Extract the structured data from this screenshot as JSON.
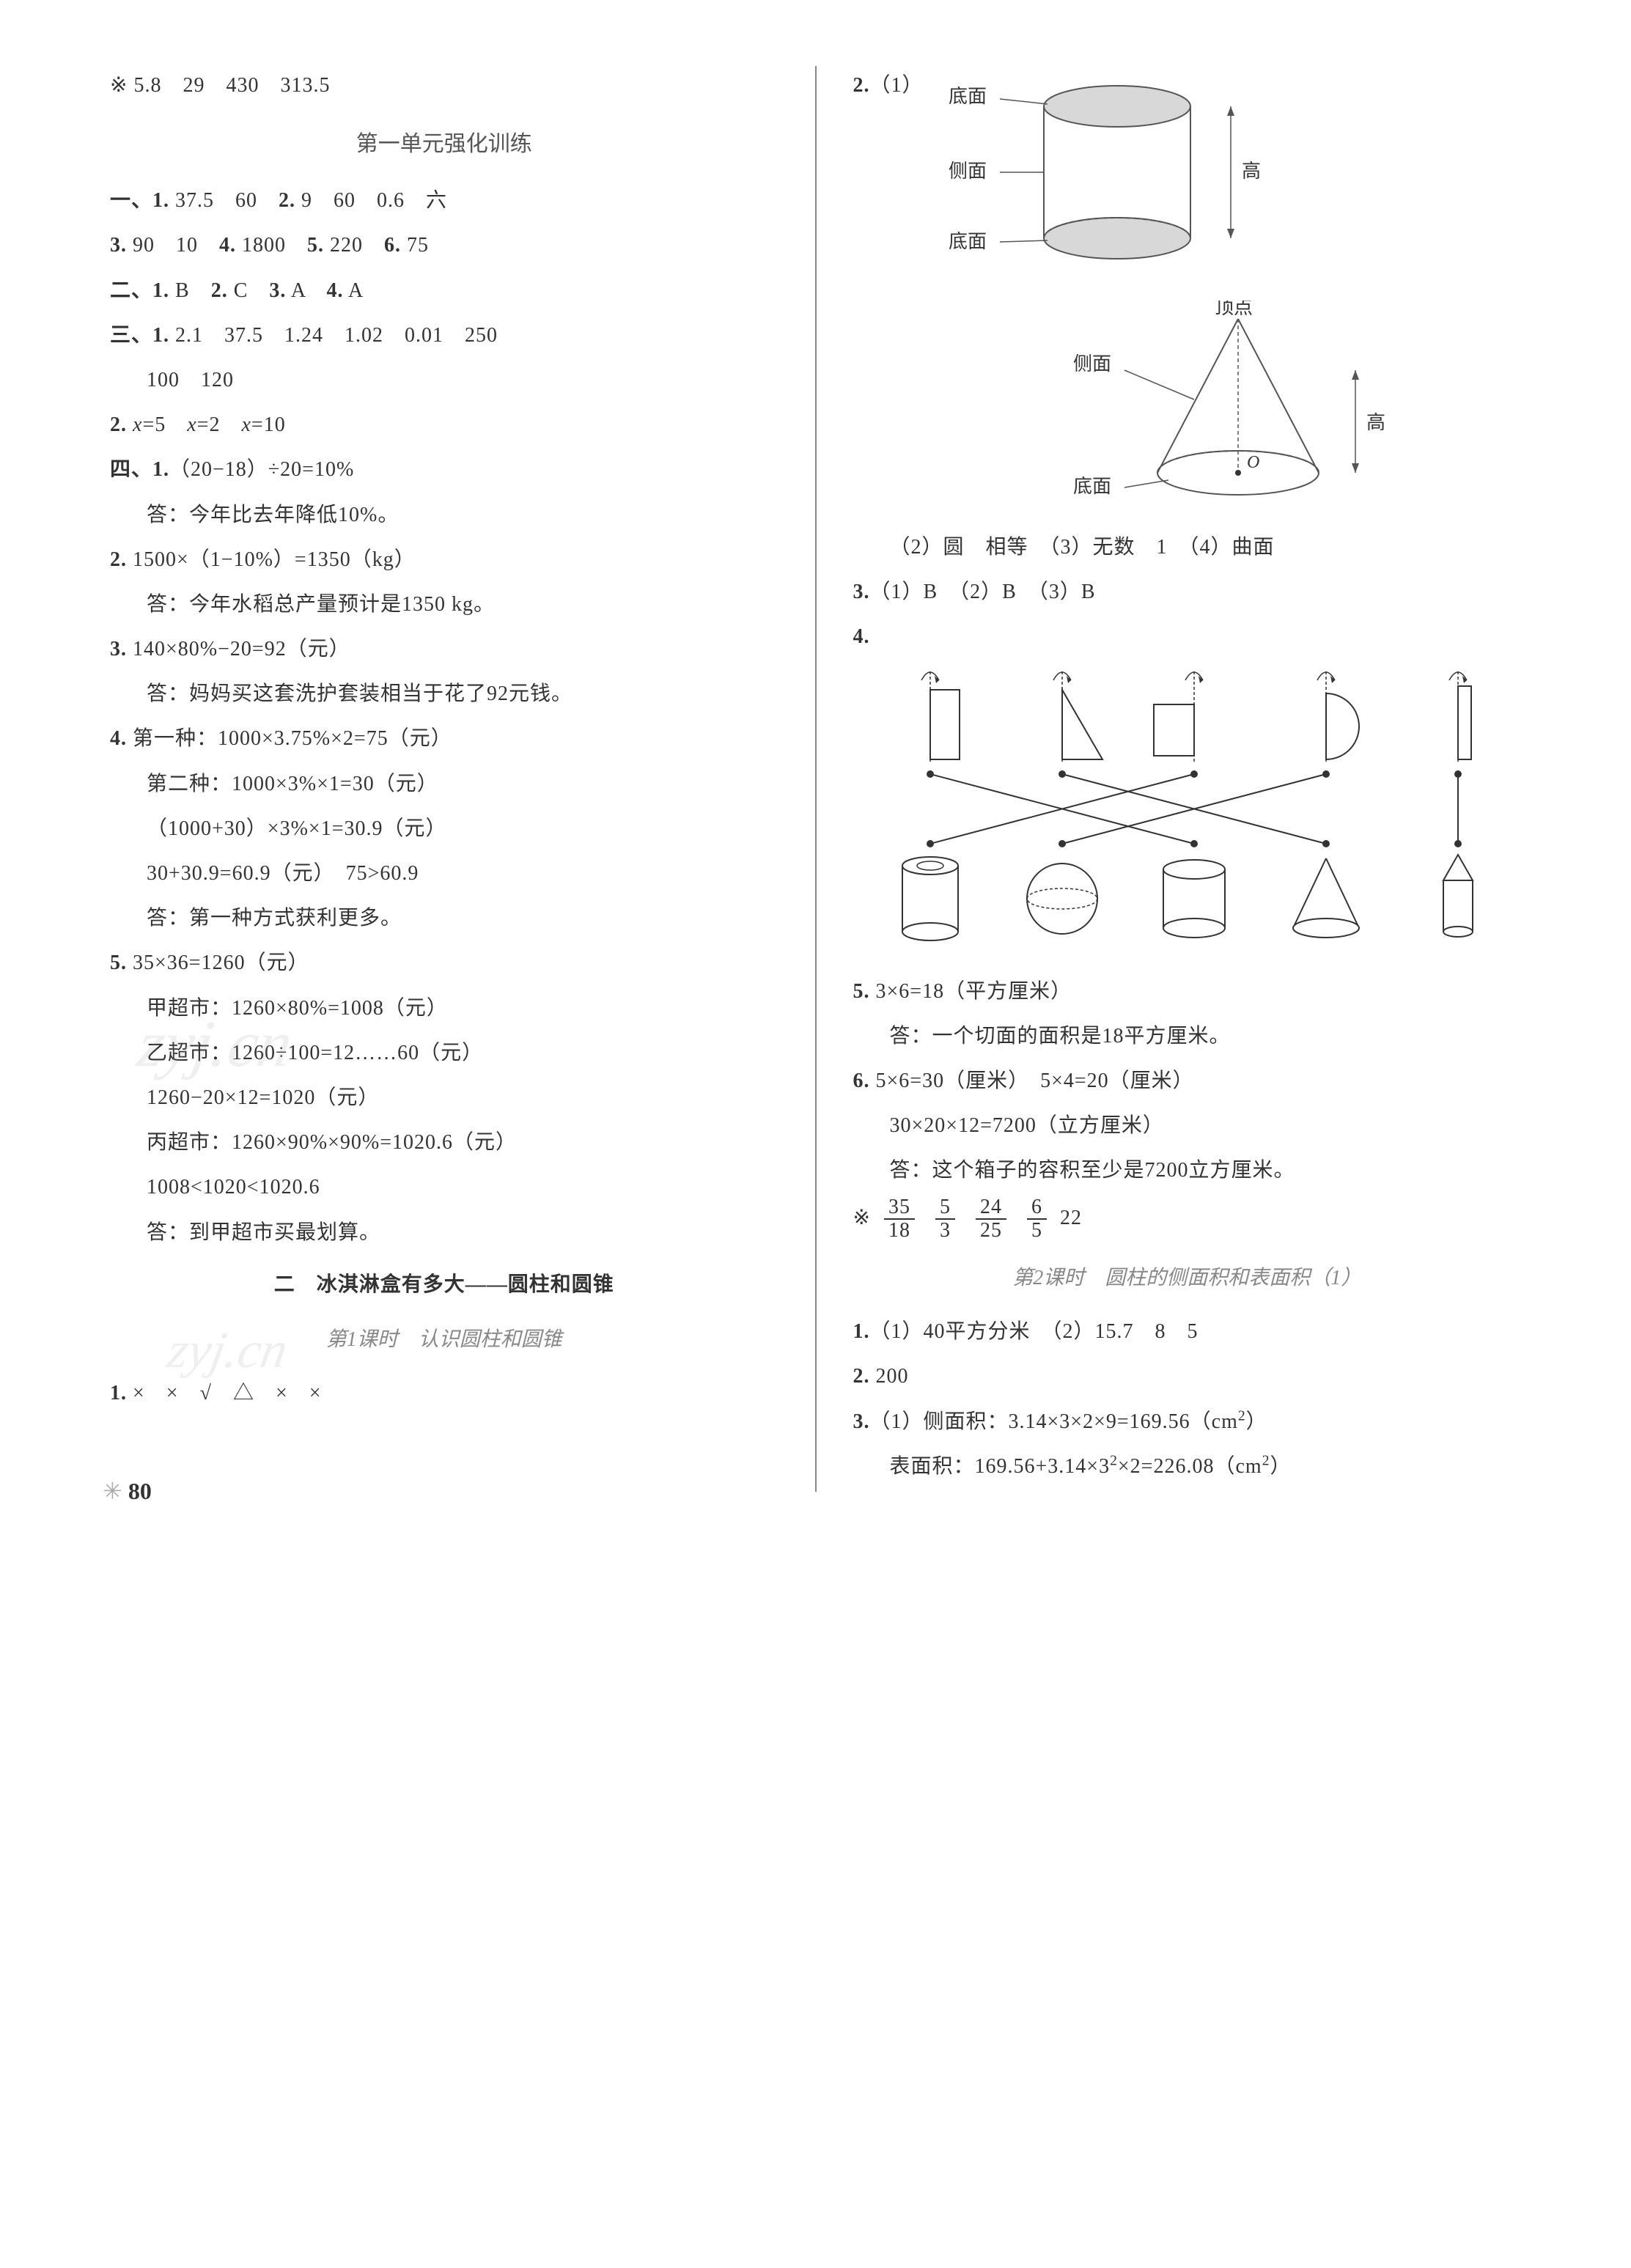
{
  "colorScheme": {
    "text": "#333333",
    "mutedText": "#888888",
    "divider": "#888888",
    "background": "#ffffff",
    "diagramFill": "#d0d0d0",
    "diagramStroke": "#555555",
    "watermark": "rgba(150,150,150,0.15)"
  },
  "typography": {
    "bodyFontSize": 28,
    "titleFontSize": 30,
    "lineHeight": 1.9,
    "fontFamily": "SimSun, 宋体, serif"
  },
  "left": {
    "starLine": "※ 5.8　29　430　313.5",
    "title1": "第一单元强化训练",
    "s1_1": "一、1. 37.5　60　2. 9　60　0.6　六",
    "s1_2": "3. 90　10　4. 1800　5. 220　6. 75",
    "s2_1": "二、1. B　2. C　3. A　4. A",
    "s3_1": "三、1. 2.1　37.5　1.24　1.02　0.01　250",
    "s3_1b": "100　120",
    "s3_2": "2. x=5　x=2　x=10",
    "s4_1": "四、1.（20−18）÷20=10%",
    "s4_1a": "答：今年比去年降低10%。",
    "s4_2": "2. 1500×（1−10%）=1350（kg）",
    "s4_2a": "答：今年水稻总产量预计是1350 kg。",
    "s4_3": "3. 140×80%−20=92（元）",
    "s4_3a": "答：妈妈买这套洗护套装相当于花了92元钱。",
    "s4_4": "4. 第一种：1000×3.75%×2=75（元）",
    "s4_4a": "第二种：1000×3%×1=30（元）",
    "s4_4b": "（1000+30）×3%×1=30.9（元）",
    "s4_4c": "30+30.9=60.9（元）　75>60.9",
    "s4_4d": "答：第一种方式获利更多。",
    "s4_5": "5. 35×36=1260（元）",
    "s4_5a": "甲超市：1260×80%=1008（元）",
    "s4_5b": "乙超市：1260÷100=12……60（元）",
    "s4_5c": "1260−20×12=1020（元）",
    "s4_5d": "丙超市：1260×90%×90%=1020.6（元）",
    "s4_5e": "1008<1020<1020.6",
    "s4_5f": "答：到甲超市买最划算。",
    "title2": "二　冰淇淋盒有多大——圆柱和圆锥",
    "subTitle2": "第1课时　认识圆柱和圆锥",
    "q1": "1. ×　×　√　△　×　×",
    "watermark1": "zyj.cn",
    "watermark2": "zyj.cn"
  },
  "right": {
    "q2pre": "2.（1）",
    "cylLabels": {
      "top": "底面",
      "side": "侧面",
      "bottom": "底面",
      "height": "高"
    },
    "coneLabels": {
      "apex": "顶点",
      "side": "侧面",
      "bottom": "底面",
      "center": "O",
      "height": "高"
    },
    "q2_2": "（2）圆　相等　（3）无数　1　（4）曲面",
    "q3": "3.（1）B　（2）B　（3）B",
    "q4pre": "4.",
    "matching": {
      "topShapes": [
        "rect-vert",
        "right-tri",
        "rect-horiz",
        "semicircle",
        "thin-rect"
      ],
      "bottomShapes": [
        "hollow-cyl",
        "sphere",
        "cylinder",
        "cone",
        "pencil-cyl"
      ],
      "edges": [
        [
          0,
          2
        ],
        [
          1,
          3
        ],
        [
          2,
          0
        ],
        [
          3,
          1
        ],
        [
          4,
          4
        ]
      ],
      "colors": {
        "shapeStroke": "#333333",
        "shapeFill": "#e8e8e8",
        "line": "#333333",
        "axis": "#333333"
      }
    },
    "q5": "5. 3×6=18（平方厘米）",
    "q5a": "答：一个切面的面积是18平方厘米。",
    "q6": "6. 5×6=30（厘米）　5×4=20（厘米）",
    "q6a": "30×20×12=7200（立方厘米）",
    "q6b": "答：这个箱子的容积至少是7200立方厘米。",
    "starPre": "※",
    "fracs": [
      {
        "n": "35",
        "d": "18"
      },
      {
        "n": "5",
        "d": "3"
      },
      {
        "n": "24",
        "d": "25"
      },
      {
        "n": "6",
        "d": "5"
      }
    ],
    "starTail": "22",
    "subTitle3": "第2课时　圆柱的侧面积和表面积（1）",
    "r1": "1.（1）40平方分米　（2）15.7　8　5",
    "r2": "2. 200",
    "r3": "3.（1）侧面积：3.14×3×2×9=169.56（cm²）",
    "r3a": "表面积：169.56+3.14×3²×2=226.08（cm²）"
  },
  "pageNum": "80"
}
